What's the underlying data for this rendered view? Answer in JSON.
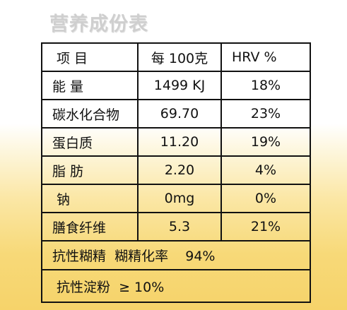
{
  "title": "营养成份表",
  "header": {
    "item": "项 目",
    "per": "每 100克",
    "hrv": "HRV %"
  },
  "rows": [
    {
      "name": "能 量",
      "value": "1499 KJ",
      "hrv": "18%"
    },
    {
      "name": "碳水化合物",
      "value": "69.70",
      "hrv": "23%"
    },
    {
      "name": "蛋白质",
      "value": "11.20",
      "hrv": "19%"
    },
    {
      "name": "脂 肪",
      "value": "2.20",
      "hrv": "4%"
    },
    {
      "name": "钠",
      "value": "0mg",
      "hrv": "0%"
    },
    {
      "name": "膳食纤维",
      "value": "5.3",
      "hrv": "21%"
    }
  ],
  "footer": {
    "dextrin": "抗性糊精  糊精化率    94%",
    "starch": "抗性淀粉  ≥ 10%"
  }
}
